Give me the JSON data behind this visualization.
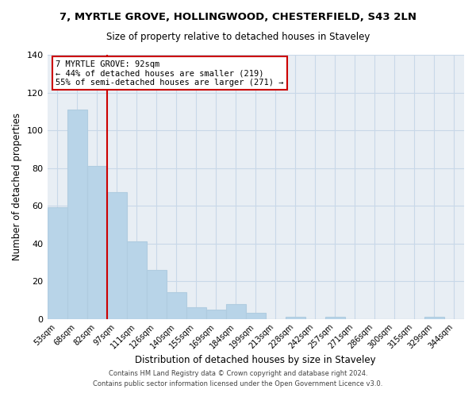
{
  "title": "7, MYRTLE GROVE, HOLLINGWOOD, CHESTERFIELD, S43 2LN",
  "subtitle": "Size of property relative to detached houses in Staveley",
  "xlabel": "Distribution of detached houses by size in Staveley",
  "ylabel": "Number of detached properties",
  "bar_labels": [
    "53sqm",
    "68sqm",
    "82sqm",
    "97sqm",
    "111sqm",
    "126sqm",
    "140sqm",
    "155sqm",
    "169sqm",
    "184sqm",
    "199sqm",
    "213sqm",
    "228sqm",
    "242sqm",
    "257sqm",
    "271sqm",
    "286sqm",
    "300sqm",
    "315sqm",
    "329sqm",
    "344sqm"
  ],
  "bar_values": [
    59,
    111,
    81,
    67,
    41,
    26,
    14,
    6,
    5,
    8,
    3,
    0,
    1,
    0,
    1,
    0,
    0,
    0,
    0,
    1,
    0
  ],
  "bar_color": "#b8d4e8",
  "bar_edge_color": "#b0cce0",
  "marker_label": "7 MYRTLE GROVE: 92sqm",
  "annotation_line1": "← 44% of detached houses are smaller (219)",
  "annotation_line2": "55% of semi-detached houses are larger (271) →",
  "vline_color": "#cc0000",
  "annotation_box_facecolor": "#ffffff",
  "annotation_box_edgecolor": "#cc0000",
  "ylim": [
    0,
    140
  ],
  "yticks": [
    0,
    20,
    40,
    60,
    80,
    100,
    120,
    140
  ],
  "footer_line1": "Contains HM Land Registry data © Crown copyright and database right 2024.",
  "footer_line2": "Contains public sector information licensed under the Open Government Licence v3.0.",
  "background_color": "#f0f4f8",
  "plot_bg_color": "#e8eef4",
  "grid_color": "#c8d8e8"
}
